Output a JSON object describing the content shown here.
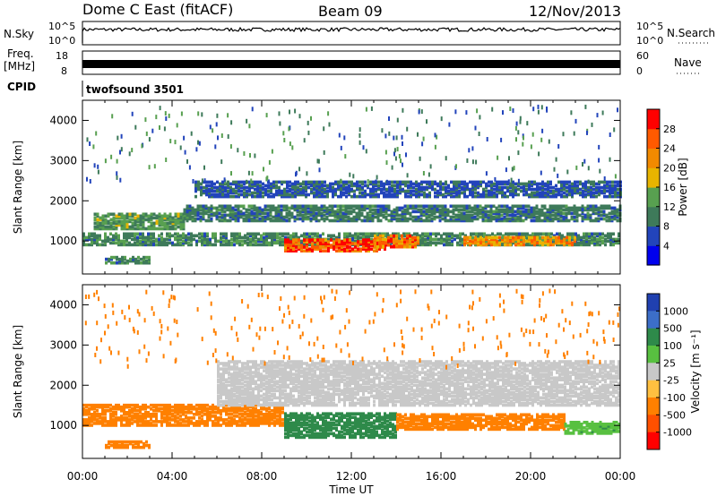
{
  "header": {
    "radar": "Dome C East (fitACF)",
    "beam": "Beam 09",
    "date": "12/Nov/2013"
  },
  "strip_panels": {
    "nsky_label": "N.Sky",
    "nsky_ticks": [
      "10^5",
      "10^0"
    ],
    "nsearch_label": "N.Search",
    "nsearch_ticks": [
      "10^5",
      "10^0"
    ],
    "freq_label_1": "Freq.",
    "freq_label_2": "[MHz]",
    "freq_ticks": [
      "18",
      "8"
    ],
    "nave_label": "Nave",
    "nave_ticks": [
      "60",
      "0"
    ],
    "cpid_label": "CPID",
    "cpid_value": "twofsound 3501"
  },
  "chart_data": [
    {
      "type": "heatmap",
      "name": "power",
      "xlabel": "Time UT",
      "ylabel": "Slant Range [km]",
      "x_ticks": [
        "00:00",
        "04:00",
        "08:00",
        "12:00",
        "16:00",
        "20:00",
        "00:00"
      ],
      "y_ticks": [
        1000,
        2000,
        3000,
        4000
      ],
      "xlim_hours": [
        0,
        24
      ],
      "ylim_km": [
        180,
        4500
      ],
      "colorbar": {
        "label": "Power [dB]",
        "ticks": [
          "28",
          "24",
          "20",
          "16",
          "12",
          "8",
          "4"
        ],
        "range": [
          0,
          30
        ],
        "colors": [
          "#0000ee",
          "#2244bb",
          "#3e7a5a",
          "#58a050",
          "#e8b400",
          "#f28a00",
          "#ff5a00",
          "#ff0000"
        ]
      },
      "echo_regions": [
        {
          "t": [
            0.0,
            24.0
          ],
          "r": [
            900,
            1200
          ],
          "value": 10
        },
        {
          "t": [
            9.0,
            13.5
          ],
          "r": [
            750,
            1050
          ],
          "value": 26
        },
        {
          "t": [
            13.0,
            15.0
          ],
          "r": [
            850,
            1150
          ],
          "value": 22
        },
        {
          "t": [
            17.0,
            22.0
          ],
          "r": [
            900,
            1100
          ],
          "value": 20
        },
        {
          "t": [
            0.5,
            4.5
          ],
          "r": [
            1300,
            1700
          ],
          "value": 12
        },
        {
          "t": [
            4.5,
            24.0
          ],
          "r": [
            1500,
            1900
          ],
          "value": 9
        },
        {
          "t": [
            5.0,
            24.0
          ],
          "r": [
            2100,
            2500
          ],
          "value": 7
        },
        {
          "t": [
            1.0,
            3.0
          ],
          "r": [
            450,
            600
          ],
          "value": 10
        }
      ]
    },
    {
      "type": "heatmap",
      "name": "velocity",
      "xlabel": "Time UT",
      "ylabel": "Slant Range [km]",
      "x_ticks": [
        "00:00",
        "04:00",
        "08:00",
        "12:00",
        "16:00",
        "20:00",
        "00:00"
      ],
      "y_ticks": [
        1000,
        2000,
        3000,
        4000
      ],
      "xlim_hours": [
        0,
        24
      ],
      "ylim_km": [
        180,
        4500
      ],
      "colorbar": {
        "label": "Velocity [m s⁻¹]",
        "ticks": [
          "1000",
          "500",
          "100",
          "25",
          "-25",
          "-100",
          "-500",
          "-1000"
        ],
        "colors": [
          "#2040b0",
          "#3c6ec8",
          "#2e8a4a",
          "#58c040",
          "#c8c8c8",
          "#ffc040",
          "#ff8000",
          "#ff5000",
          "#ff0000"
        ]
      },
      "echo_regions": [
        {
          "t": [
            0.0,
            9.0
          ],
          "r": [
            1000,
            1500
          ],
          "value": -300
        },
        {
          "t": [
            9.0,
            14.0
          ],
          "r": [
            700,
            1300
          ],
          "value": 150
        },
        {
          "t": [
            14.0,
            21.5
          ],
          "r": [
            900,
            1300
          ],
          "value": -250
        },
        {
          "t": [
            21.5,
            24.0
          ],
          "r": [
            800,
            1100
          ],
          "value": 80
        },
        {
          "t": [
            6.0,
            24.0
          ],
          "r": [
            1500,
            2600
          ],
          "value": 0
        },
        {
          "t": [
            1.0,
            3.0
          ],
          "r": [
            450,
            600
          ],
          "value": -300
        }
      ]
    }
  ]
}
